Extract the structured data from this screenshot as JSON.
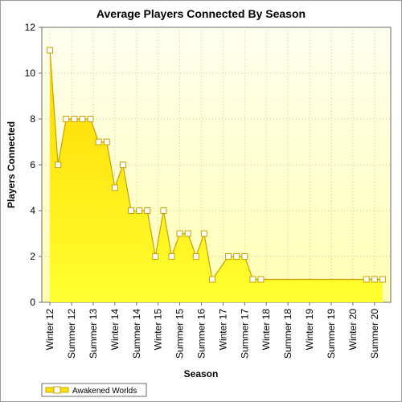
{
  "chart_data": {
    "type": "area",
    "title": "Average Players Connected By Season",
    "xlabel": "Season",
    "ylabel": "Players Connected",
    "ylim": [
      0,
      12
    ],
    "yticks": [
      0,
      2,
      4,
      6,
      8,
      10,
      12
    ],
    "grid": true,
    "legend_position": "bottom-left",
    "x_tick_labels": [
      "Winter 12",
      "Summer 12",
      "Summer 13",
      "Winter 14",
      "Summer 14",
      "Winter 15",
      "Summer 15",
      "Summer 16",
      "Winter 17",
      "Summer 17",
      "Winter 18",
      "Summer 18",
      "Winter 19",
      "Summer 19",
      "Winter 20",
      "Summer 20"
    ],
    "series": [
      {
        "name": "Awakened Worlds",
        "color": "#ffe400",
        "line_color": "#c8a000",
        "points": [
          {
            "x": 1.0,
            "y": 11,
            "marker": true
          },
          {
            "x": 1.5,
            "y": 6,
            "marker": true
          },
          {
            "x": 2.0,
            "y": 8,
            "marker": true
          },
          {
            "x": 2.5,
            "y": 8,
            "marker": true
          },
          {
            "x": 3.0,
            "y": 8,
            "marker": true
          },
          {
            "x": 3.5,
            "y": 8,
            "marker": true
          },
          {
            "x": 4.0,
            "y": 7,
            "marker": true
          },
          {
            "x": 4.5,
            "y": 7,
            "marker": true
          },
          {
            "x": 5.0,
            "y": 5,
            "marker": true
          },
          {
            "x": 5.5,
            "y": 6,
            "marker": true
          },
          {
            "x": 6.0,
            "y": 4,
            "marker": true
          },
          {
            "x": 6.5,
            "y": 4,
            "marker": true
          },
          {
            "x": 7.0,
            "y": 4,
            "marker": true
          },
          {
            "x": 7.5,
            "y": 2,
            "marker": true
          },
          {
            "x": 8.0,
            "y": 4,
            "marker": true
          },
          {
            "x": 8.5,
            "y": 2,
            "marker": true
          },
          {
            "x": 9.0,
            "y": 3,
            "marker": true
          },
          {
            "x": 9.5,
            "y": 3,
            "marker": true
          },
          {
            "x": 10.0,
            "y": 2,
            "marker": true
          },
          {
            "x": 10.5,
            "y": 3,
            "marker": true
          },
          {
            "x": 11.0,
            "y": 1,
            "marker": true
          },
          {
            "x": 12.0,
            "y": 2,
            "marker": true
          },
          {
            "x": 12.5,
            "y": 2,
            "marker": true
          },
          {
            "x": 13.0,
            "y": 2,
            "marker": true
          },
          {
            "x": 13.5,
            "y": 1,
            "marker": true
          },
          {
            "x": 14.0,
            "y": 1,
            "marker": true
          },
          {
            "x": 15.0,
            "y": 1,
            "marker": false
          },
          {
            "x": 16.0,
            "y": 1,
            "marker": false
          },
          {
            "x": 17.0,
            "y": 1,
            "marker": false
          },
          {
            "x": 17.5,
            "y": 1,
            "marker": false
          },
          {
            "x": 18.0,
            "y": 1,
            "marker": false
          },
          {
            "x": 19.0,
            "y": 1,
            "marker": false
          },
          {
            "x": 20.0,
            "y": 1,
            "marker": false
          },
          {
            "x": 20.5,
            "y": 1,
            "marker": true
          },
          {
            "x": 21.0,
            "y": 1,
            "marker": true
          },
          {
            "x": 21.5,
            "y": 1,
            "marker": true
          }
        ]
      }
    ]
  },
  "colors": {
    "plot_background_top": "#fffff0",
    "plot_background_bottom": "#ffffb4",
    "area_top": "#ffd700",
    "area_bottom": "#ffff30",
    "grid": "#c8c8a0"
  }
}
